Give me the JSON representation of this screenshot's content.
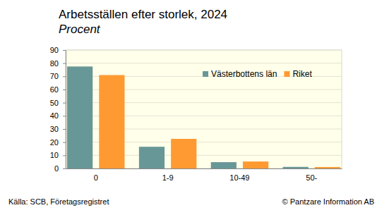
{
  "chart_data": {
    "type": "bar",
    "title": "Arbetsställen efter storlek, 2024",
    "subtitle": "Procent",
    "categories": [
      "0",
      "1-9",
      "10-49",
      "50-"
    ],
    "series": [
      {
        "name": "Västerbottens län",
        "color": "#689797",
        "values": [
          77.5,
          16.5,
          4.8,
          1.2
        ]
      },
      {
        "name": "Riket",
        "color": "#ff9a33",
        "values": [
          71,
          22.5,
          5.3,
          1.1
        ]
      }
    ],
    "ylim": [
      0,
      90
    ],
    "yticks": [
      0,
      10,
      20,
      30,
      40,
      50,
      60,
      70,
      80,
      90
    ],
    "grid": true,
    "legend": "upper right",
    "source": "Källa: SCB, Företagsregistret",
    "credit": "© Pantzare Information AB"
  }
}
